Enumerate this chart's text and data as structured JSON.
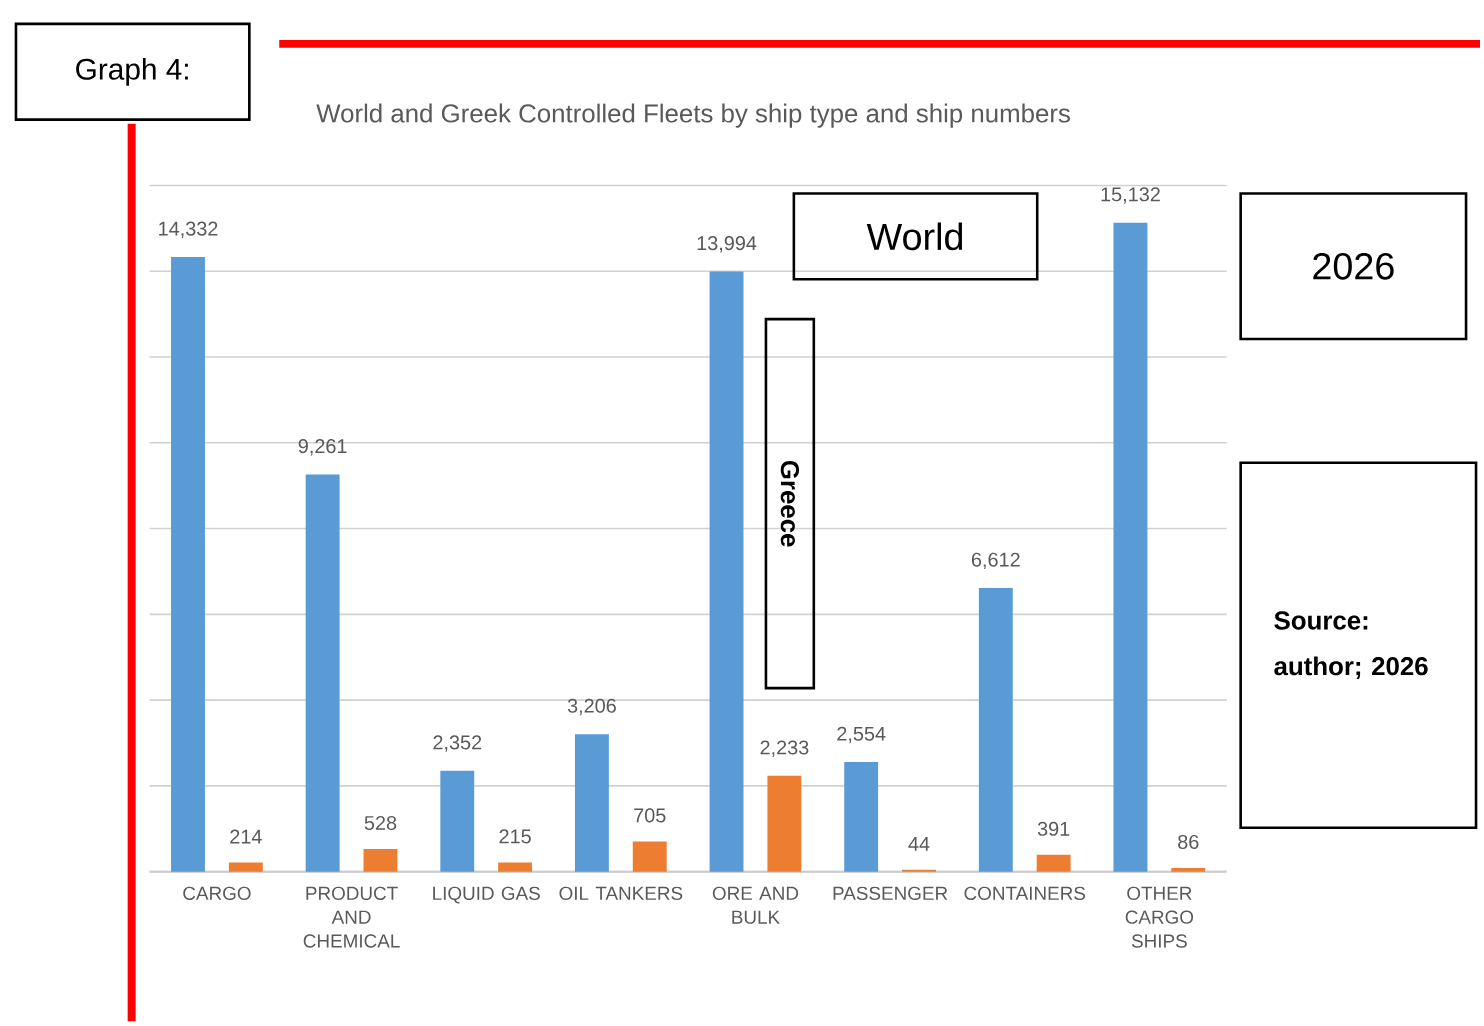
{
  "chart_data": {
    "type": "bar",
    "title": "World and Greek Controlled Fleets by ship type and ship numbers",
    "categories": [
      "CARGO",
      "PRODUCT AND CHEMICAL",
      "LIQUID GAS",
      "OIL TANKERS",
      "ORE AND BULK",
      "PASSENGER",
      "CONTAINERS",
      "OTHER CARGO SHIPS"
    ],
    "series": [
      {
        "color": "#5b9bd5",
        "values": [
          14332,
          9261,
          2352,
          3206,
          13994,
          2554,
          6612,
          15132
        ],
        "value_labels": [
          "14,332",
          "9,261",
          "2,352",
          "3,206",
          "13,994",
          "2,554",
          "6,612",
          "15,132"
        ]
      },
      {
        "color": "#ed7d31",
        "values": [
          214,
          528,
          215,
          705,
          2233,
          44,
          391,
          86
        ],
        "value_labels": [
          "214",
          "528",
          "215",
          "705",
          "2,233",
          "44",
          "391",
          "86"
        ]
      }
    ],
    "ylim": [
      0,
      16000
    ],
    "yticks": [
      {
        "value": 0,
        "label": null
      },
      {
        "value": 2000,
        "label": null
      },
      {
        "value": 4000,
        "label": null
      },
      {
        "value": 6000,
        "label": null
      },
      {
        "value": 8000,
        "label": null
      },
      {
        "value": 10000,
        "label": null
      },
      {
        "value": 12000,
        "label": null
      },
      {
        "value": 14000,
        "label": null
      },
      {
        "value": 16000,
        "label": null
      }
    ],
    "grid": "y",
    "tick_labels": "x",
    "annotations": [
      "Graph 4:",
      "World",
      "Greece",
      "2026",
      "Source: author; 2026"
    ]
  }
}
